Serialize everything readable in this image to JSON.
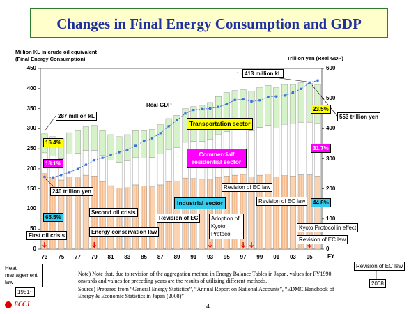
{
  "chart_data": {
    "type": "bar",
    "stacked": true,
    "title": "Changes in Final Energy Consumption and GDP",
    "y_label": [
      "Million KL in crude oil equivalent",
      "(Final Energy Consumption)"
    ],
    "y2_label": "Trillion yen (Real GDP)",
    "x_label": "FY",
    "categories": [
      "73",
      null,
      "75",
      null,
      "77",
      null,
      "79",
      null,
      "81",
      null,
      "83",
      null,
      "85",
      null,
      "87",
      null,
      "89",
      null,
      "91",
      null,
      "93",
      null,
      "95",
      null,
      "97",
      null,
      "99",
      null,
      "01",
      null,
      "03",
      null,
      "05",
      null
    ],
    "series": [
      {
        "name": "Industrial sector",
        "color": "#fcd3b0",
        "values": [
          188,
          180,
          172,
          180,
          180,
          184,
          182,
          168,
          158,
          152,
          153,
          160,
          157,
          155,
          160,
          168,
          170,
          177,
          176,
          174,
          174,
          178,
          182,
          184,
          186,
          180,
          184,
          187,
          180,
          183,
          182,
          185,
          185,
          182
        ]
      },
      {
        "name": "Commercial/ residential sector",
        "color": "#ffffff",
        "values": [
          52,
          52,
          53,
          57,
          59,
          62,
          64,
          65,
          64,
          64,
          67,
          69,
          70,
          73,
          77,
          80,
          83,
          89,
          92,
          94,
          99,
          107,
          111,
          113,
          112,
          114,
          119,
          121,
          122,
          128,
          130,
          131,
          131,
          132
        ]
      },
      {
        "name": "Transportation sector",
        "color": "#d6f2c8",
        "values": [
          47,
          48,
          50,
          53,
          56,
          59,
          62,
          62,
          63,
          64,
          65,
          66,
          68,
          70,
          73,
          77,
          80,
          84,
          87,
          90,
          92,
          95,
          97,
          98,
          99,
          99,
          100,
          100,
          100,
          99,
          98,
          98,
          97,
          96
        ]
      },
      {
        "name": "Real GDP",
        "color": "#3a6fd8",
        "type": "line",
        "axis": "y2",
        "values": [
          240,
          238,
          246,
          255,
          266,
          280,
          295,
          303,
          312,
          322,
          330,
          343,
          358,
          368,
          385,
          408,
          428,
          450,
          462,
          465,
          467,
          472,
          482,
          495,
          497,
          490,
          494,
          505,
          507,
          510,
          520,
          532,
          553,
          560
        ]
      }
    ],
    "ylim": [
      0,
      450
    ],
    "yticks": [
      0,
      50,
      100,
      150,
      200,
      250,
      300,
      350,
      400,
      450
    ],
    "y2lim": [
      0,
      600
    ],
    "y2ticks": [
      0,
      100,
      200,
      300,
      400,
      500,
      600
    ],
    "annotations": [
      "287 million kL",
      "413 million kL",
      "240 trillion yen",
      "553 trillion yen",
      "Real GDP",
      "16.4%",
      "18.1%",
      "65.5%",
      "23.5%",
      "31.7%",
      "44.8%",
      "First oil crisis",
      "Second oil crisis",
      "Energy conservation law",
      "Revision of EC",
      "Adoption of Kyoto Protocol",
      "Revision of EC law",
      "Revision of EC law",
      "Kyoto Protocol in effect",
      "Revision of EC law",
      "Heat management law",
      "1951~",
      "Revision of EC law",
      "2008"
    ],
    "notes": [
      "Note)  Note that, due to revision of the aggregation method in Energy Balance Tables in Japan, values for FY1990 onwards and values for preceding years are the results of utilizing different methods.",
      "Source)  Prepared from “General Energy Statistics”, “Annual Report on National Accounts”, “EDMC Handbook of Energy & Economic Statistics in Japan (2008)”"
    ],
    "logo": "ECCJ",
    "page_number": "4"
  }
}
